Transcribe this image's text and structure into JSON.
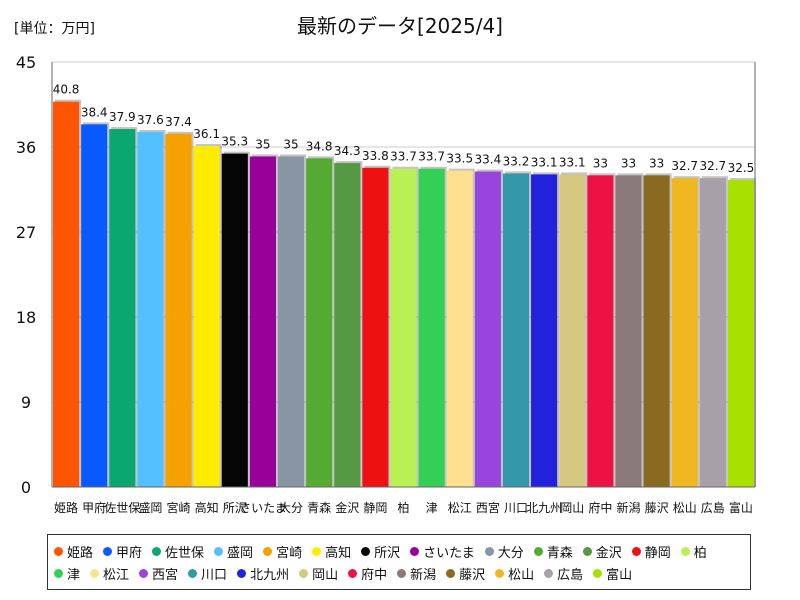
{
  "chart_data": {
    "type": "bar",
    "title": "最新のデータ[2025/4]",
    "unit_label": "[単位：万円]",
    "ylim": [
      0,
      45
    ],
    "yticks": [
      "0",
      "9",
      "18",
      "27",
      "36",
      "45"
    ],
    "grid": true,
    "legend_position": "bottom",
    "categories": [
      "姫路",
      "甲府",
      "佐世保",
      "盛岡",
      "宮崎",
      "高知",
      "所沢",
      "さいたま",
      "大分",
      "青森",
      "金沢",
      "静岡",
      "柏",
      "津",
      "松江",
      "西宮",
      "川口",
      "北九州",
      "岡山",
      "府中",
      "新潟",
      "藤沢",
      "松山",
      "広島",
      "富山"
    ],
    "values": [
      40.8,
      38.4,
      37.9,
      37.6,
      37.4,
      36.1,
      35.3,
      35,
      35,
      34.8,
      34.3,
      33.8,
      33.7,
      33.7,
      33.5,
      33.4,
      33.2,
      33.1,
      33.1,
      33,
      33,
      33,
      32.7,
      32.7,
      32.5
    ],
    "value_labels": [
      "40.8",
      "38.4",
      "37.9",
      "37.6",
      "37.4",
      "36.1",
      "35.3",
      "35",
      "35",
      "34.8",
      "34.3",
      "33.8",
      "33.7",
      "33.7",
      "33.5",
      "33.4",
      "33.2",
      "33.1",
      "33.1",
      "33",
      "33",
      "33",
      "32.7",
      "32.7",
      "32.5"
    ],
    "colors": [
      "#ff5500",
      "#0a5bff",
      "#0aa870",
      "#55c0ff",
      "#f5a200",
      "#ffec00",
      "#050505",
      "#990099",
      "#8895a5",
      "#55aa33",
      "#559944",
      "#ee1111",
      "#b8f055",
      "#33d055",
      "#ffe090",
      "#9944dd",
      "#3399aa",
      "#2222dd",
      "#d4c880",
      "#ee1144",
      "#8a7a7a",
      "#8a6a20",
      "#f0b820",
      "#a8a0a8",
      "#a8e000"
    ]
  }
}
